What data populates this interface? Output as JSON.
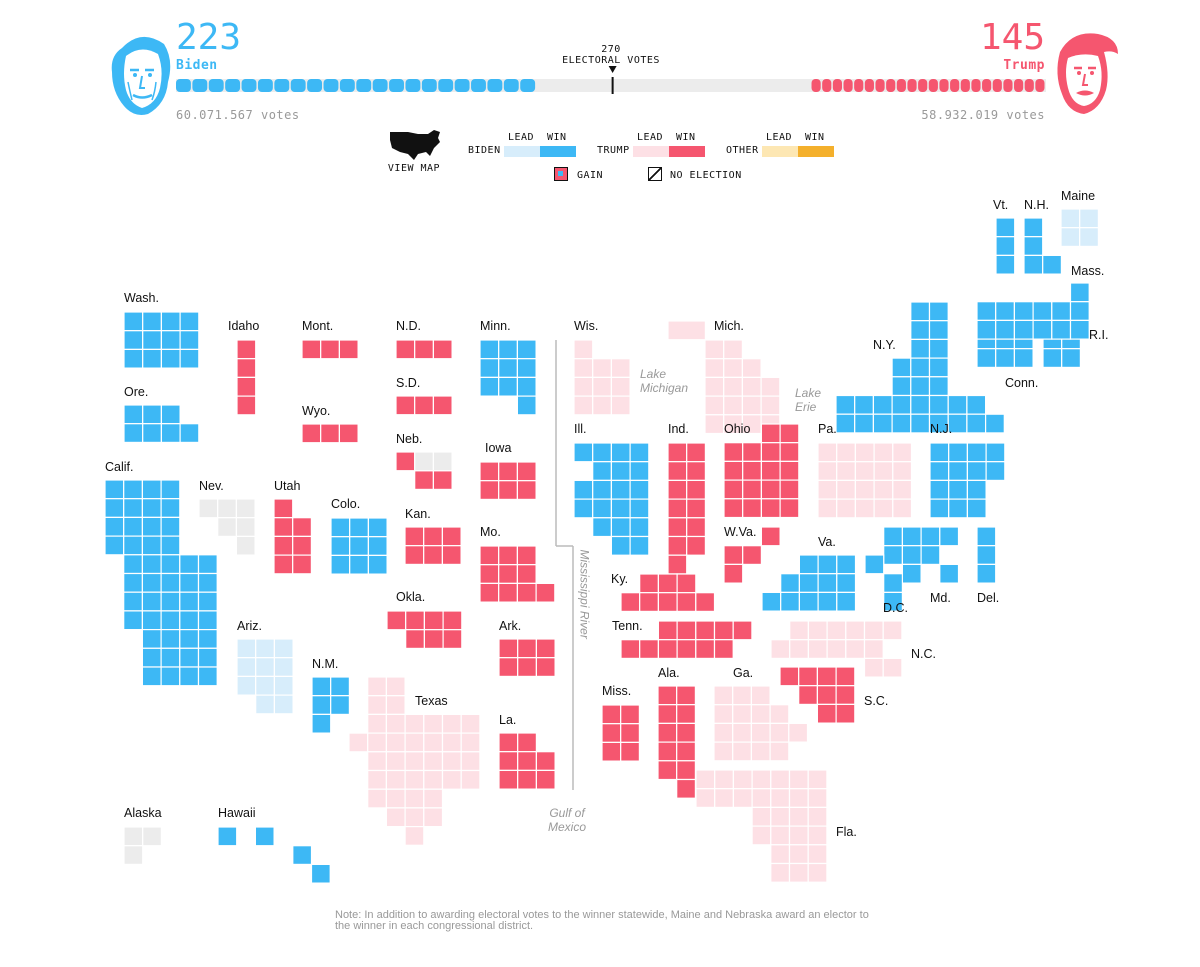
{
  "colors": {
    "biden_win": "#3db8f5",
    "biden_lead": "#d7edfb",
    "trump_win": "#f5566f",
    "trump_lead": "#fde0e5",
    "other_lead": "#fde7b3",
    "other_win": "#f4b02c",
    "no_election": "#ececec",
    "bar_bg": "#ececec"
  },
  "header": {
    "biden": {
      "count": "223",
      "name": "Biden",
      "votes": "60.071.567 votes",
      "icon": "biden-portrait-icon"
    },
    "trump": {
      "count": "145",
      "name": "Trump",
      "votes": "58.932.019 votes",
      "icon": "trump-portrait-icon"
    },
    "threshold": {
      "number": "270",
      "label": "ELECTORAL VOTES"
    },
    "progress": {
      "total": 538,
      "biden": 223,
      "trump": 145,
      "threshold": 270
    }
  },
  "legend": {
    "view_map": "VIEW MAP",
    "lead": "LEAD",
    "win": "WIN",
    "biden": "BIDEN",
    "trump": "TRUMP",
    "other": "OTHER",
    "gain": "GAIN",
    "no_election": "NO ELECTION"
  },
  "water_labels": {
    "lake_michigan": "Lake\nMichigan",
    "lake_erie": "Lake\nErie",
    "mississippi": "Mississippi River",
    "gulf": "Gulf of\nMexico"
  },
  "note": "Note: In addition to awarding electoral votes to the winner statewide, Maine and Nebraska award an elector to the winner in each congressional district.",
  "states": [
    {
      "name": "Wash.",
      "status": "bw",
      "cells": "0,0-3;1,0-3;2,0-3"
    },
    {
      "name": "Ore.",
      "status": "bw",
      "cells": "0,0-2;1,0-3"
    },
    {
      "name": "Calif.",
      "status": "bw",
      "cells": "0,0-3;1,0-3;2,0-3;3,0-3;4,1-5;5,1-5;6,1-5;7,1-5;8,2-5;9,2-5;10,2-5"
    },
    {
      "name": "Idaho",
      "status": "tw",
      "cells": "0,0;1,0;2,0;3,0"
    },
    {
      "name": "Nev.",
      "status": "ne",
      "cells": "0,0-2;1,1-2;2,2"
    },
    {
      "name": "Mont.",
      "status": "tw",
      "cells": "0,0-2"
    },
    {
      "name": "Wyo.",
      "status": "tw",
      "cells": "0,0-2"
    },
    {
      "name": "Utah",
      "status": "tw",
      "cells": "0,0;1,0-1;2,0-1;3,0-1"
    },
    {
      "name": "Colo.",
      "status": "bw",
      "cells": "0,0-2;1,0-2;2,0-2"
    },
    {
      "name": "Ariz.",
      "status": "bl",
      "cells": "0,0-2;1,0-2;2,0-2;3,1-2"
    },
    {
      "name": "N.M.",
      "status": "bw",
      "cells": "0,0-1;1,0-1;2,0"
    },
    {
      "name": "N.D.",
      "status": "tw",
      "cells": "0,0-2"
    },
    {
      "name": "S.D.",
      "status": "tw",
      "cells": "0,0-2"
    },
    {
      "name": "Neb.",
      "status": "tw",
      "cells": "0,0;1,1-2"
    },
    {
      "name": "Neb. (districts)",
      "status": "ne",
      "cells": "0,1-2"
    },
    {
      "name": "Kan.",
      "status": "tw",
      "cells": "0,0-2;1,0-2"
    },
    {
      "name": "Okla.",
      "status": "tw",
      "cells": "0,0-3;1,1-3"
    },
    {
      "name": "Texas",
      "status": "tl",
      "cells": "0,1-2;1,1-2;2,1-6;3,0-6;4,1-6;5,1-6;6,1-4;7,2-4;8,3"
    },
    {
      "name": "Minn.",
      "status": "bw",
      "cells": "0,0-2;1,0-2;2,0-2;3,2"
    },
    {
      "name": "Iowa",
      "status": "tw",
      "cells": "0,0-2;1,0-2"
    },
    {
      "name": "Mo.",
      "status": "tw",
      "cells": "0,0-2;1,0-2;2,0-3"
    },
    {
      "name": "Ark.",
      "status": "tw",
      "cells": "0,0-2;1,0-2"
    },
    {
      "name": "La.",
      "status": "tw",
      "cells": "0,0-1;1,0-2;2,0-2"
    },
    {
      "name": "Wis.",
      "status": "tl",
      "cells": "0,0;1,0-2;2,0-2;3,0-2"
    },
    {
      "name": "Ill.",
      "status": "bw",
      "cells": "0,0-3;1,1-3;2,0-3;3,0-3;4,1-3;5,2-3"
    },
    {
      "name": "Mich.",
      "status": "tl",
      "cells": "0,0-1;1,0-2;2,0-3;3,0-3;4,0-3"
    },
    {
      "name": "Ind.",
      "status": "tw",
      "cells": "0,0-1;1,0-1;2,0-1;3,0-1;4,0-1;5,0-1;6,0"
    },
    {
      "name": "Ohio",
      "status": "tw",
      "cells": "0,2-3;1,0-3;2,0-3;3,0-3;4,0-3"
    },
    {
      "name": "Ky.",
      "status": "tw",
      "cells": "0,1-3;1,0-4"
    },
    {
      "name": "Tenn.",
      "status": "tw",
      "cells": "0,2-6;1,0-5"
    },
    {
      "name": "Miss.",
      "status": "tw",
      "cells": "0,0-1;1,0-1;2,0-1"
    },
    {
      "name": "Ala.",
      "status": "tw",
      "cells": "0,0-1;1,0-1;2,0-1;3,0-1;4,0-1;5,1"
    },
    {
      "name": "Ga.",
      "status": "tl",
      "cells": "0,0-2;1,0-3;2,0-4;3,0-3"
    },
    {
      "name": "Fla.",
      "status": "tl",
      "cells": "0,0-6;1,0-6;2,3-6;3,3-6;4,4-6;5,4-6"
    },
    {
      "name": "S.C.",
      "status": "tw",
      "cells": "0,0-3;1,1-3;2,2-3"
    },
    {
      "name": "N.C.",
      "status": "tl",
      "cells": "0,1-6;1,0-5;2,5-6"
    },
    {
      "name": "W.Va.",
      "status": "tw",
      "cells": "0,2;1,0-1;2,0"
    },
    {
      "name": "Va.",
      "status": "bw",
      "cells": "0,2-4;1,1-4;2,0-4"
    },
    {
      "name": "Pa.",
      "status": "tl",
      "cells": "0,0-4;1,0-4;2,0-4;3,0-4"
    },
    {
      "name": "Md.",
      "status": "bw",
      "cells": "0,1-4;1,1-3;2,2;2,4"
    },
    {
      "name": "D.C.",
      "status": "bw",
      "cells": "0,0;1,1;2,1"
    },
    {
      "name": "Del.",
      "status": "bw",
      "cells": "0,0;1,0;2,0"
    },
    {
      "name": "N.J.",
      "status": "bw",
      "cells": "0,0-3;1,0-3;2,0-2;3,0-2"
    },
    {
      "name": "N.Y.",
      "status": "bw",
      "cells": "0,4-5;1,4-5;2,4-5;3,3-5;4,3-5;5,0-7;6,0-8"
    },
    {
      "name": "Conn.",
      "status": "bw",
      "cells": "0,0-2;1,0-2"
    },
    {
      "name": "R.I.",
      "status": "bw",
      "cells": "0,0-1;1,0-1"
    },
    {
      "name": "Mass.",
      "status": "bw",
      "cells": "0,5;1,0-5;2,0-5"
    },
    {
      "name": "Vt.",
      "status": "bw",
      "cells": "0,0;1,0;2,0"
    },
    {
      "name": "N.H.",
      "status": "bw",
      "cells": "0,0;1,0;2,0-1"
    },
    {
      "name": "Maine",
      "status": "bl",
      "cells": "0,0-1;1,0-1"
    },
    {
      "name": "Alaska",
      "status": "ne",
      "cells": "0,0-1;1,0"
    },
    {
      "name": "Hawaii",
      "status": "bw",
      "cells": "0,0;0,2;1,4;2,5"
    }
  ]
}
